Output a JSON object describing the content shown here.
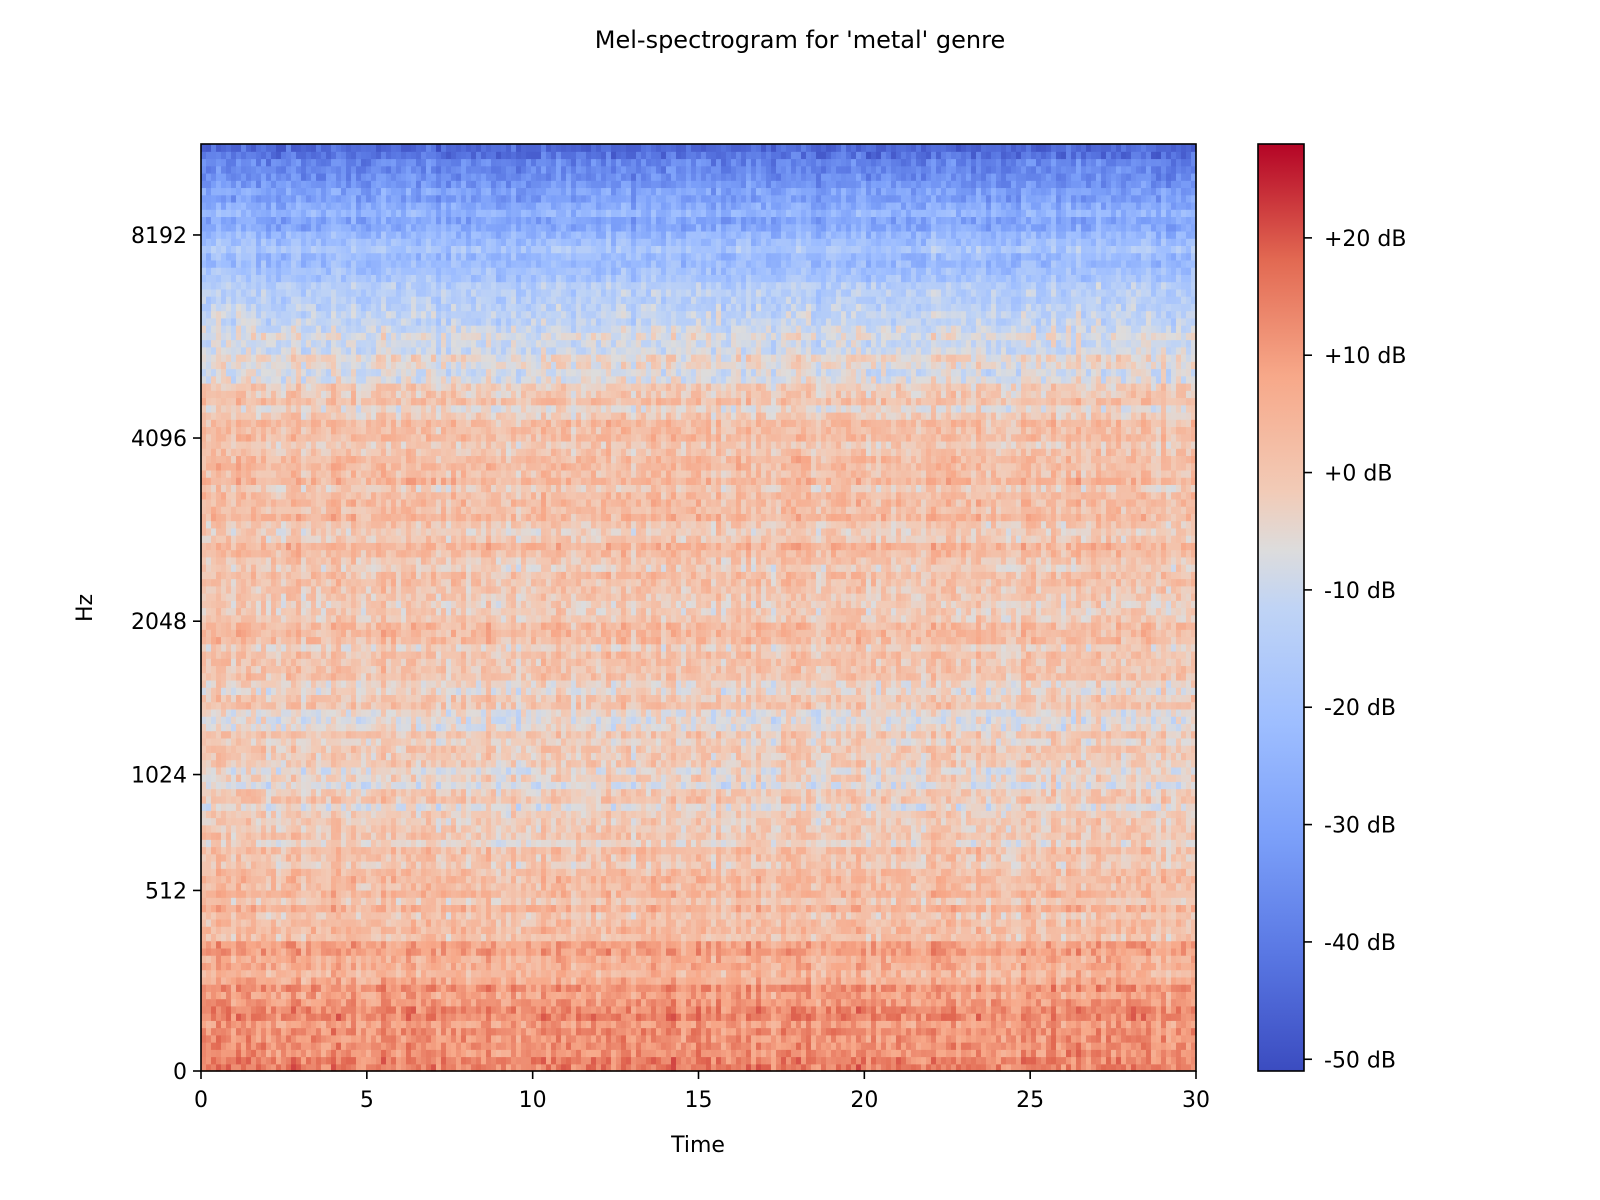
{
  "chart_data": {
    "type": "heatmap",
    "title": "Mel-spectrogram for 'metal' genre",
    "xlabel": "Time",
    "ylabel": "Hz",
    "xlim": [
      0,
      30
    ],
    "x_ticks": [
      0,
      5,
      10,
      15,
      20,
      25,
      30
    ],
    "x_tick_labels": [
      "0",
      "5",
      "10",
      "15",
      "20",
      "25",
      "30"
    ],
    "y_scale": "mel",
    "ylim_hz": [
      0,
      11025
    ],
    "y_ticks_hz": [
      0,
      512,
      1024,
      2048,
      4096,
      8192
    ],
    "y_tick_labels": [
      "0",
      "512",
      "1024",
      "2048",
      "4096",
      "8192"
    ],
    "colormap": "coolwarm",
    "colorbar": {
      "range_db": [
        -51,
        28
      ],
      "ticks_db": [
        20,
        10,
        0,
        -10,
        -20,
        -30,
        -40,
        -50
      ],
      "tick_labels": [
        "+20 dB",
        "+10 dB",
        "+0 dB",
        "-10 dB",
        "-20 dB",
        "-30 dB",
        "-40 dB",
        "-50 dB"
      ]
    },
    "intensity_profile_db": [
      {
        "hz": 0,
        "db": 14
      },
      {
        "hz": 300,
        "db": 6
      },
      {
        "hz": 512,
        "db": 0
      },
      {
        "hz": 1024,
        "db": -4
      },
      {
        "hz": 1500,
        "db": -3
      },
      {
        "hz": 2048,
        "db": 1
      },
      {
        "hz": 4096,
        "db": 2
      },
      {
        "hz": 5500,
        "db": -8
      },
      {
        "hz": 8192,
        "db": -22
      },
      {
        "hz": 11025,
        "db": -46
      }
    ],
    "grid": false,
    "legend": "none"
  }
}
